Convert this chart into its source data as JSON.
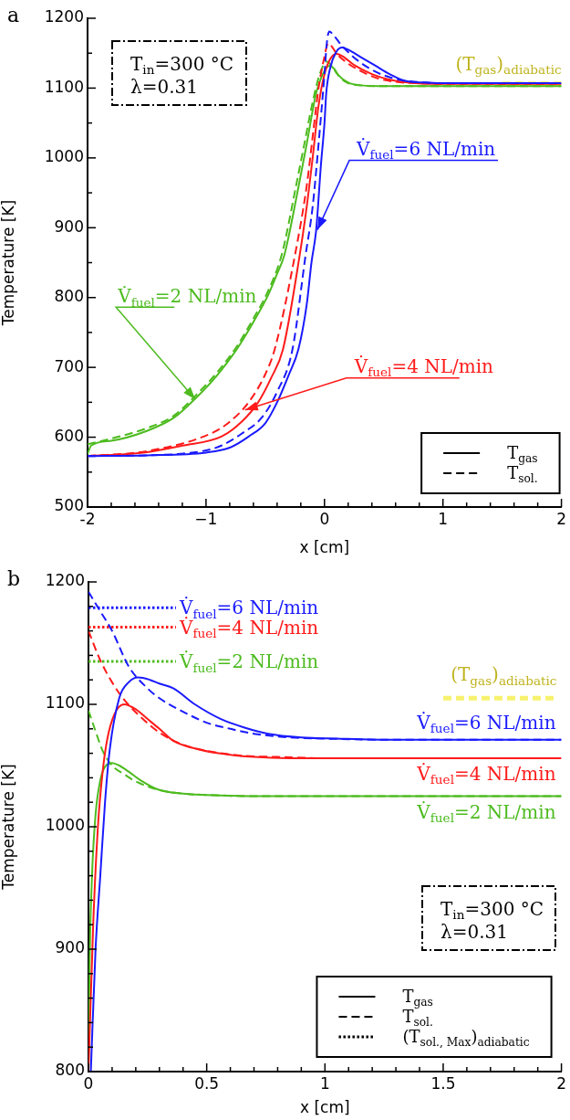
{
  "chart_data": [
    {
      "type": "line",
      "title": "a",
      "xlabel": "x [cm]",
      "ylabel": "Temperature [K]",
      "marker": "none",
      "legend": "bottom right",
      "xlim": [
        -2,
        2
      ],
      "xticks": [
        -2,
        {
          "value": -1.8,
          "label": null
        },
        {
          "value": -1.6,
          "label": null
        },
        {
          "value": -1.4,
          "label": null
        },
        {
          "value": -1.2,
          "label": null
        },
        {
          "value": -1,
          "label": "−1"
        },
        {
          "value": -0.8,
          "label": null
        },
        {
          "value": -0.6,
          "label": null
        },
        {
          "value": -0.4,
          "label": null
        },
        {
          "value": -0.2,
          "label": null
        },
        0,
        {
          "value": 0.2,
          "label": null
        },
        {
          "value": 0.4,
          "label": null
        },
        {
          "value": 0.6,
          "label": null
        },
        {
          "value": 0.8,
          "label": null
        },
        1,
        {
          "value": 1.2,
          "label": null
        },
        {
          "value": 1.4,
          "label": null
        },
        {
          "value": 1.6,
          "label": null
        },
        {
          "value": 1.8,
          "label": null
        },
        2
      ],
      "ylim": [
        500,
        1200
      ],
      "yticks": [
        500,
        {
          "value": 550,
          "label": null
        },
        600,
        {
          "value": 650,
          "label": null
        },
        700,
        {
          "value": 750,
          "label": null
        },
        800,
        {
          "value": 850,
          "label": null
        },
        900,
        {
          "value": 950,
          "label": null
        },
        1000,
        {
          "value": 1050,
          "label": null
        },
        1100,
        {
          "value": 1150,
          "label": null
        },
        1200
      ],
      "series": [
        {
          "name": "T$_{gas}$",
          "color": "#000000",
          "line_style": "solid"
        },
        {
          "name": "T$_{sol.}$",
          "color": "#000000",
          "line_style": "dashed"
        },
        {
          "color": "#1a1aff",
          "line_style": "solid",
          "x": [
            -2,
            -1.5,
            -1,
            -0.8,
            -0.64,
            -0.5,
            -0.4,
            -0.3,
            -0.22,
            -0.15,
            -0.11,
            -0.07,
            -0.03,
            0,
            0.015,
            0.05,
            0.1,
            0.15,
            0.2,
            0.3,
            0.43,
            0.55,
            0.69,
            0.85,
            1,
            1.5,
            2
          ],
          "values": [
            573,
            574,
            578,
            585,
            601,
            620,
            650,
            690,
            726,
            790,
            850,
            897,
            990,
            1050,
            1093,
            1130,
            1152,
            1158,
            1155,
            1145,
            1132,
            1120,
            1110,
            1108,
            1107,
            1107,
            1107
          ]
        },
        {
          "color": "#1a1aff",
          "line_style": "dashed",
          "x": [
            -2,
            -1.5,
            -1,
            -0.87,
            -0.7,
            -0.53,
            -0.4,
            -0.27,
            -0.16,
            -0.1,
            -0.05,
            0,
            0.02,
            0.04,
            0.08,
            0.15,
            0.3,
            0.45,
            0.56,
            0.7,
            0.85,
            1,
            1.5,
            2
          ],
          "values": [
            573,
            574,
            581,
            588,
            605,
            628,
            665,
            726,
            860,
            930,
            1020,
            1120,
            1165,
            1181,
            1175,
            1160,
            1137,
            1122,
            1115,
            1110,
            1108,
            1107,
            1107,
            1107
          ]
        },
        {
          "color": "#ff1a1a",
          "line_style": "solid",
          "x": [
            -2,
            -1.53,
            -1.2,
            -0.87,
            -0.7,
            -0.56,
            -0.45,
            -0.35,
            -0.21,
            -0.15,
            -0.1,
            -0.05,
            0,
            0.05,
            0.1,
            0.15,
            0.25,
            0.4,
            0.55,
            0.7,
            1,
            1.5,
            2
          ],
          "values": [
            573,
            578,
            588,
            601,
            622,
            650,
            685,
            726,
            860,
            930,
            1000,
            1075,
            1120,
            1142,
            1149,
            1146,
            1133,
            1120,
            1112,
            1108,
            1106,
            1106,
            1106
          ]
        },
        {
          "color": "#ff1a1a",
          "line_style": "dashed",
          "x": [
            -2,
            -1.5,
            -0.95,
            -0.8,
            -0.64,
            -0.5,
            -0.42,
            -0.25,
            -0.15,
            -0.1,
            -0.05,
            0,
            0.03,
            0.06,
            0.1,
            0.2,
            0.3,
            0.45,
            0.6,
            0.8,
            1,
            2
          ],
          "values": [
            573,
            580,
            606,
            622,
            650,
            690,
            726,
            860,
            960,
            1030,
            1100,
            1145,
            1164,
            1160,
            1150,
            1135,
            1125,
            1114,
            1109,
            1107,
            1106,
            1106
          ]
        },
        {
          "color": "#4dbb1f",
          "line_style": "solid",
          "x": [
            -2,
            -1.97,
            -1.8,
            -1.5,
            -1.27,
            -1.08,
            -0.9,
            -0.74,
            -0.6,
            -0.48,
            -0.4,
            -0.34,
            -0.22,
            -0.15,
            -0.07,
            -0.02,
            0.04,
            0.08,
            0.12,
            0.2,
            0.3,
            0.45,
            1,
            2
          ],
          "values": [
            576,
            588,
            595,
            609,
            628,
            657,
            690,
            726,
            765,
            802,
            834,
            860,
            958,
            1020,
            1093,
            1118,
            1132,
            1128,
            1118,
            1108,
            1104,
            1103,
            1103,
            1103
          ]
        },
        {
          "color": "#4dbb1f",
          "line_style": "dashed",
          "x": [
            -2,
            -1.8,
            -1.5,
            -1.27,
            -1.08,
            -0.9,
            -0.74,
            -0.6,
            -0.48,
            -0.36,
            -0.24,
            -0.17,
            -0.1,
            -0.04,
            0.02,
            0.06,
            0.1,
            0.15,
            0.2,
            0.3,
            0.45,
            1,
            2
          ],
          "values": [
            590,
            598,
            613,
            631,
            661,
            694,
            730,
            770,
            808,
            862,
            960,
            1020,
            1080,
            1120,
            1138,
            1132,
            1122,
            1112,
            1107,
            1104,
            1103,
            1103,
            1103
          ]
        },
        {
          "color": "#f7f26e",
          "line_style": "dashed",
          "x": [
            1.5,
            2
          ],
          "values": [
            1106,
            1106
          ]
        }
      ],
      "annotations": [
        "T$_{in}$=300 °C",
        "λ=0.31",
        {
          "text": "(T$_{gas}$)$_{adiabatic}$",
          "x": 2,
          "y": 1106
        },
        {
          "text": "V̇$_{fuel}$=6 NL/min",
          "x": -0.06,
          "y": 897
        },
        {
          "text": "V̇$_{fuel}$=2 NL/min",
          "x": -1.09,
          "y": 654
        },
        {
          "text": "V̇$_{fuel}$=4 NL/min",
          "x": -0.67,
          "y": 639
        }
      ]
    },
    {
      "type": "line",
      "title": "b",
      "xlabel": "x [cm]",
      "ylabel": "Temperature [K]",
      "marker": "none",
      "legend": "bottom right",
      "xlim": [
        0,
        2
      ],
      "xticks": [
        0,
        {
          "value": 0.1,
          "label": null
        },
        {
          "value": 0.2,
          "label": null
        },
        {
          "value": 0.3,
          "label": null
        },
        {
          "value": 0.4,
          "label": null
        },
        0.5,
        {
          "value": 0.6,
          "label": null
        },
        {
          "value": 0.7,
          "label": null
        },
        {
          "value": 0.8,
          "label": null
        },
        {
          "value": 0.9,
          "label": null
        },
        1,
        {
          "value": 1.1,
          "label": null
        },
        {
          "value": 1.2,
          "label": null
        },
        {
          "value": 1.3,
          "label": null
        },
        {
          "value": 1.4,
          "label": null
        },
        1.5,
        {
          "value": 1.6,
          "label": null
        },
        {
          "value": 1.7,
          "label": null
        },
        {
          "value": 1.8,
          "label": null
        },
        {
          "value": 1.9,
          "label": null
        },
        2
      ],
      "ylim": [
        800,
        1200
      ],
      "yticks": [
        800,
        {
          "value": 820,
          "label": null
        },
        {
          "value": 840,
          "label": null
        },
        {
          "value": 860,
          "label": null
        },
        {
          "value": 880,
          "label": null
        },
        900,
        {
          "value": 920,
          "label": null
        },
        {
          "value": 940,
          "label": null
        },
        {
          "value": 960,
          "label": null
        },
        {
          "value": 980,
          "label": null
        },
        1000,
        {
          "value": 1020,
          "label": null
        },
        {
          "value": 1040,
          "label": null
        },
        {
          "value": 1060,
          "label": null
        },
        {
          "value": 1080,
          "label": null
        },
        1100,
        {
          "value": 1120,
          "label": null
        },
        {
          "value": 1140,
          "label": null
        },
        {
          "value": 1160,
          "label": null
        },
        {
          "value": 1180,
          "label": null
        },
        1200
      ],
      "series": [
        {
          "name": "T$_{gas}$",
          "color": "#000000",
          "line_style": "solid"
        },
        {
          "name": "T$_{sol.}$",
          "color": "#000000",
          "line_style": "dashed"
        },
        {
          "name": "(T$_{sol., Max}$)$_{adiabatic}$",
          "color": "#000000",
          "line_style": "dotted"
        },
        {
          "color": "#1a1aff",
          "line_style": "solid",
          "x": [
            0.01,
            0.03,
            0.05,
            0.07,
            0.09,
            0.13,
            0.17,
            0.21,
            0.26,
            0.3,
            0.36,
            0.45,
            0.56,
            0.66,
            0.76,
            0.9,
            1.05,
            1.3,
            2
          ],
          "values": [
            800,
            900,
            960,
            1020,
            1063,
            1105,
            1118,
            1122,
            1120,
            1117,
            1113,
            1100,
            1088,
            1081,
            1076,
            1073,
            1072,
            1071,
            1071
          ]
        },
        {
          "color": "#1a1aff",
          "line_style": "dashed",
          "x": [
            0,
            0.05,
            0.1,
            0.17,
            0.25,
            0.3,
            0.4,
            0.5,
            0.6,
            0.7,
            0.85,
            1,
            1.3,
            2
          ],
          "values": [
            1192,
            1176,
            1160,
            1131,
            1113,
            1105,
            1094,
            1085,
            1080,
            1076,
            1073,
            1072,
            1071,
            1071
          ]
        },
        {
          "color": "#ff1a1a",
          "line_style": "solid",
          "x": [
            0,
            0.02,
            0.04,
            0.06,
            0.08,
            0.11,
            0.15,
            0.2,
            0.25,
            0.3,
            0.36,
            0.45,
            0.55,
            0.7,
            0.85,
            1,
            2
          ],
          "values": [
            800,
            920,
            1000,
            1045,
            1072,
            1092,
            1100,
            1096,
            1088,
            1080,
            1070,
            1064,
            1060,
            1057,
            1056,
            1056,
            1056
          ]
        },
        {
          "color": "#ff1a1a",
          "line_style": "dashed",
          "x": [
            0,
            0.05,
            0.1,
            0.15,
            0.23,
            0.3,
            0.4,
            0.5,
            0.65,
            0.8,
            1,
            2
          ],
          "values": [
            1160,
            1136,
            1118,
            1104,
            1088,
            1077,
            1067,
            1062,
            1058,
            1057,
            1056,
            1056
          ]
        },
        {
          "color": "#4dbb1f",
          "line_style": "solid",
          "x": [
            0,
            0.005,
            0.015,
            0.03,
            0.05,
            0.07,
            0.1,
            0.13,
            0.17,
            0.22,
            0.3,
            0.4,
            0.5,
            0.7,
            2
          ],
          "values": [
            800,
            890,
            960,
            1010,
            1038,
            1049,
            1052,
            1050,
            1045,
            1038,
            1030,
            1027,
            1026,
            1025,
            1025
          ]
        },
        {
          "color": "#4dbb1f",
          "line_style": "dashed",
          "x": [
            0,
            0.03,
            0.06,
            0.1,
            0.15,
            0.2,
            0.3,
            0.4,
            0.5,
            0.7,
            2
          ],
          "values": [
            1095,
            1078,
            1062,
            1050,
            1043,
            1037,
            1030,
            1027,
            1026,
            1025,
            1025
          ]
        },
        {
          "color": "#1a1aff",
          "line_style": "dotted",
          "x": [
            0,
            0.37
          ],
          "values": [
            1179,
            1179
          ]
        },
        {
          "color": "#ff1a1a",
          "line_style": "dotted",
          "x": [
            0,
            0.37
          ],
          "values": [
            1163,
            1163
          ]
        },
        {
          "color": "#4dbb1f",
          "line_style": "dotted",
          "x": [
            0,
            0.37
          ],
          "values": [
            1135,
            1135
          ]
        },
        {
          "color": "#f7f26e",
          "line_style": "dashed",
          "x": [
            1.5,
            1.98
          ],
          "values": [
            1105,
            1105
          ]
        }
      ],
      "annotations": [
        "T$_{in}$=300 °C",
        "λ=0.31",
        {
          "text": "(T$_{gas}$)$_{adiabatic}$",
          "x": 1.98,
          "y": 1105
        },
        {
          "text": "V̇$_{fuel}$=6 NL/min",
          "x": 0.37,
          "y": 1179
        },
        {
          "text": "V̇$_{fuel}$=4 NL/min",
          "x": 0.37,
          "y": 1163
        },
        {
          "text": "V̇$_{fuel}$=2 NL/min",
          "x": 0.37,
          "y": 1135
        },
        {
          "text": "V̇$_{fuel}$=6 NL/min",
          "x": 2,
          "y": 1071
        },
        {
          "text": "V̇$_{fuel}$=4 NL/min",
          "x": 2,
          "y": 1056
        },
        {
          "text": "V̇$_{fuel}$=2 NL/min",
          "x": 2,
          "y": 1025
        }
      ]
    }
  ]
}
